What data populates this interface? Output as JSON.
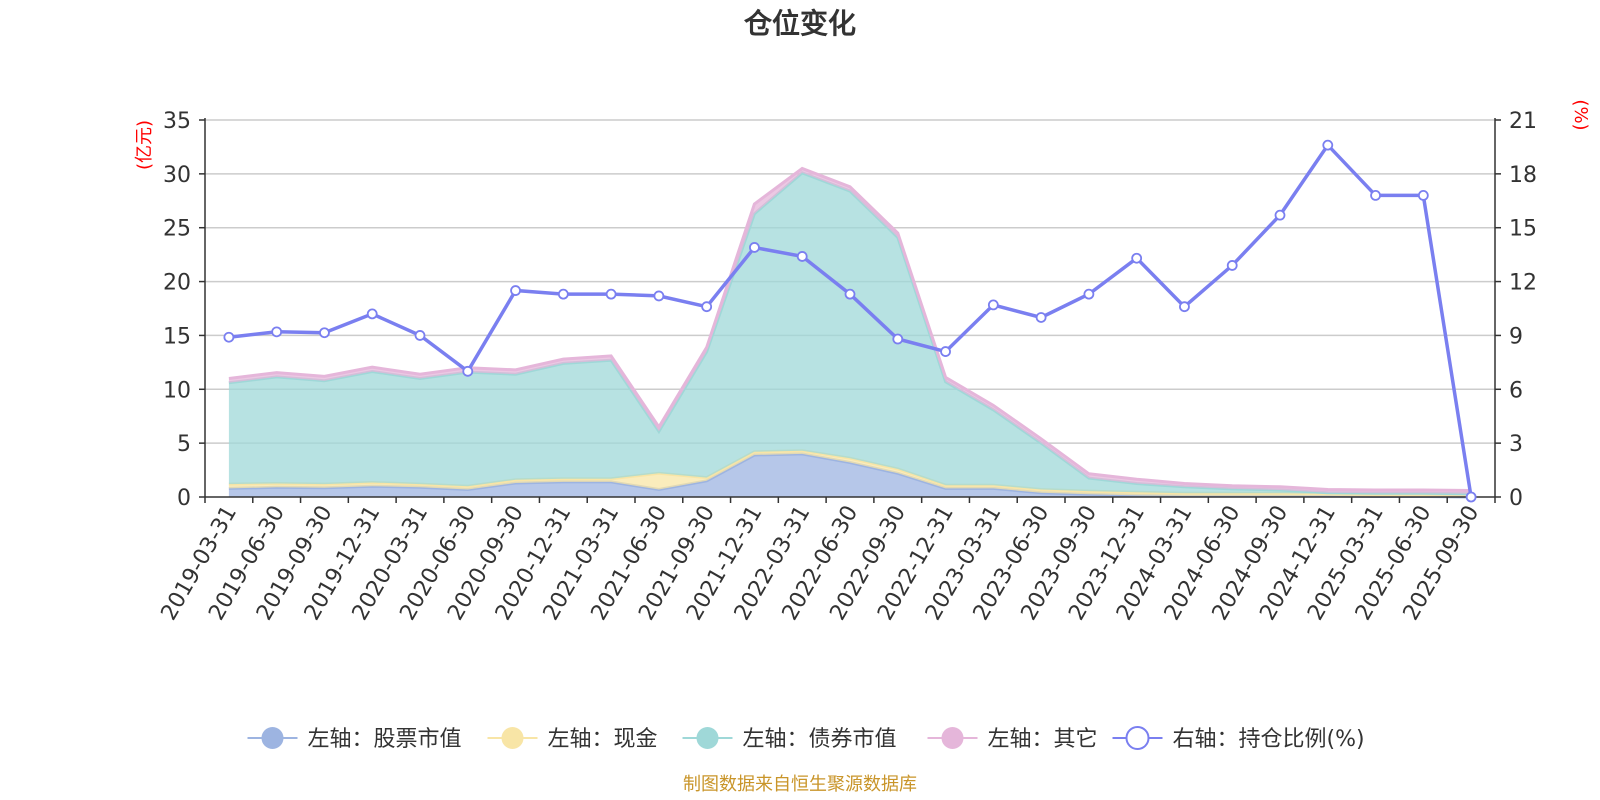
{
  "chart_data": {
    "type": "area",
    "title": "仓位变化",
    "left_axis_unit": "(亿元)",
    "right_axis_unit": "(%)",
    "left_ylim": [
      0,
      35
    ],
    "left_ticks": [
      0,
      5,
      10,
      15,
      20,
      25,
      30,
      35
    ],
    "right_ylim": [
      0,
      21
    ],
    "right_ticks": [
      0,
      3,
      6,
      9,
      12,
      15,
      18,
      21
    ],
    "categories": [
      "2019-03-31",
      "2019-06-30",
      "2019-09-30",
      "2019-12-31",
      "2020-03-31",
      "2020-06-30",
      "2020-09-30",
      "2020-12-31",
      "2021-03-31",
      "2021-06-30",
      "2021-09-30",
      "2021-12-31",
      "2022-03-31",
      "2022-06-30",
      "2022-09-30",
      "2022-12-31",
      "2023-03-31",
      "2023-06-30",
      "2023-09-30",
      "2023-12-31",
      "2024-03-31",
      "2024-06-30",
      "2024-09-30",
      "2024-12-31",
      "2025-03-31",
      "2025-06-30",
      "2025-09-30"
    ],
    "stacked_series": [
      {
        "name": "左轴：股票市值",
        "axis": "left",
        "color": "#9db4e1",
        "values": [
          0.8,
          0.9,
          0.85,
          1.0,
          0.9,
          0.7,
          1.3,
          1.4,
          1.4,
          0.7,
          1.5,
          3.9,
          4.0,
          3.2,
          2.2,
          0.8,
          0.8,
          0.4,
          0.25,
          0.15,
          0.1,
          0.1,
          0.1,
          0.1,
          0.05,
          0.05,
          0.0
        ]
      },
      {
        "name": "左轴：现金",
        "axis": "left",
        "color": "#f8e5a6",
        "values": [
          0.4,
          0.35,
          0.35,
          0.35,
          0.3,
          0.3,
          0.3,
          0.3,
          0.3,
          1.5,
          0.3,
          0.3,
          0.3,
          0.4,
          0.4,
          0.3,
          0.3,
          0.3,
          0.3,
          0.3,
          0.25,
          0.25,
          0.25,
          0.2,
          0.2,
          0.2,
          0.3
        ]
      },
      {
        "name": "左轴：债券市值",
        "axis": "left",
        "color": "#9fd8d8",
        "values": [
          9.4,
          9.9,
          9.6,
          10.3,
          9.8,
          10.6,
          9.8,
          10.7,
          11.0,
          3.9,
          11.7,
          22.1,
          25.8,
          24.8,
          21.5,
          9.6,
          7.0,
          4.3,
          1.2,
          0.8,
          0.6,
          0.4,
          0.3,
          0.1,
          0.1,
          0.1,
          0.0
        ]
      },
      {
        "name": "左轴：其它",
        "axis": "left",
        "color": "#e5b6da",
        "values": [
          0.4,
          0.4,
          0.4,
          0.4,
          0.4,
          0.4,
          0.4,
          0.4,
          0.4,
          0.4,
          0.4,
          0.9,
          0.4,
          0.4,
          0.4,
          0.4,
          0.4,
          0.4,
          0.4,
          0.4,
          0.3,
          0.3,
          0.3,
          0.3,
          0.3,
          0.3,
          0.3
        ]
      }
    ],
    "line_series": {
      "name": "右轴：持仓比例(%)",
      "axis": "right",
      "color": "#7a7ff0",
      "values": [
        8.9,
        9.2,
        9.15,
        10.2,
        9.0,
        7.0,
        11.5,
        11.3,
        11.3,
        11.2,
        10.6,
        13.9,
        13.4,
        11.3,
        8.8,
        8.1,
        10.7,
        10.0,
        11.3,
        13.3,
        10.6,
        12.9,
        15.7,
        19.6,
        16.8,
        16.8,
        0.0
      ]
    },
    "legend_position": "bottom-center",
    "source_note": "制图数据来自恒生聚源数据库"
  }
}
